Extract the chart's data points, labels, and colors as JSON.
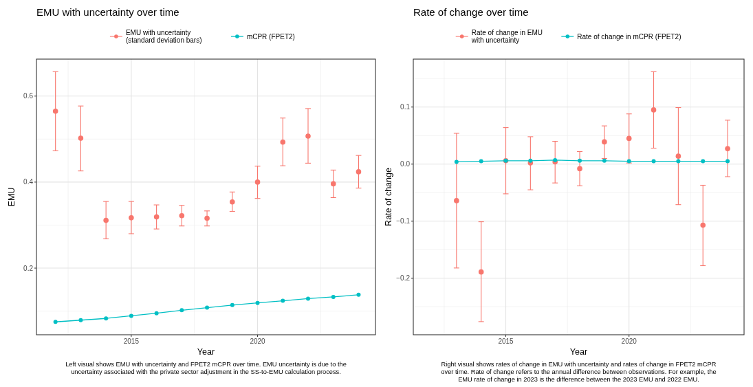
{
  "chart_data": [
    {
      "type": "scatter",
      "title": "EMU with uncertainty over time",
      "xlabel": "Year",
      "ylabel": "EMU",
      "xlim": [
        "2011-04",
        "2024-09"
      ],
      "xticks": [
        "2015",
        "2020"
      ],
      "ylim": [
        0.045,
        0.686
      ],
      "yticks": [
        0.2,
        0.4,
        0.6
      ],
      "grid": true,
      "legend": "top",
      "marker": "circle",
      "series": [
        {
          "name": "EMU with uncertainty\n(standard deviation bars)",
          "color": "#f8766d",
          "x": [
            "2012",
            "2013",
            "2014",
            "2015",
            "2016",
            "2017",
            "2018",
            "2019",
            "2020",
            "2021",
            "2022",
            "2023",
            "2024"
          ],
          "values": [
            0.565,
            0.502,
            0.311,
            0.317,
            0.319,
            0.322,
            0.316,
            0.354,
            0.4,
            0.493,
            0.507,
            0.396,
            0.424
          ],
          "errors": [
            [
              0.473,
              0.657
            ],
            [
              0.426,
              0.577
            ],
            [
              0.268,
              0.355
            ],
            [
              0.28,
              0.355
            ],
            [
              0.291,
              0.347
            ],
            [
              0.298,
              0.346
            ],
            [
              0.298,
              0.333
            ],
            [
              0.332,
              0.377
            ],
            [
              0.362,
              0.437
            ],
            [
              0.438,
              0.549
            ],
            [
              0.444,
              0.571
            ],
            [
              0.364,
              0.428
            ],
            [
              0.386,
              0.462
            ]
          ]
        },
        {
          "name": "mCPR (FPET2)",
          "type": "line",
          "color": "#00bfc4",
          "x": [
            "2012",
            "2013",
            "2014",
            "2015",
            "2016",
            "2017",
            "2018",
            "2019",
            "2020",
            "2021",
            "2022",
            "2023",
            "2024"
          ],
          "values": [
            0.075,
            0.079,
            0.083,
            0.089,
            0.095,
            0.102,
            0.108,
            0.114,
            0.119,
            0.124,
            0.129,
            0.133,
            0.138
          ]
        }
      ],
      "annotations": [
        "Left visual shows EMU with uncertainty and FPET2 mCPR over time. EMU uncertainty is due to the\nuncertainty associated with the private sector adjustment in the SS-to-EMU calculation process."
      ]
    },
    {
      "type": "scatter",
      "title": "Rate of change over time",
      "xlabel": "Year",
      "ylabel": "Rate of change",
      "xlim": [
        "2011-04",
        "2024-09"
      ],
      "xticks": [
        "2015",
        "2020"
      ],
      "ylim": [
        -0.299,
        0.184
      ],
      "yticks": [
        {
          "value": -0.2,
          "label": "−0.2"
        },
        {
          "value": -0.1,
          "label": "−0.1"
        },
        {
          "value": 0,
          "label": "0.0"
        },
        0.1
      ],
      "grid": true,
      "legend": "top",
      "marker": "circle",
      "series": [
        {
          "name": "Rate of change in EMU\nwith uncertainty",
          "color": "#f8766d",
          "x": [
            "2013",
            "2014",
            "2015",
            "2016",
            "2017",
            "2018",
            "2019",
            "2020",
            "2021",
            "2022",
            "2023",
            "2024"
          ],
          "values": [
            -0.064,
            -0.189,
            0.006,
            0.002,
            0.004,
            -0.008,
            0.039,
            0.045,
            0.095,
            0.014,
            -0.107,
            0.027
          ],
          "errors": [
            [
              -0.182,
              0.054
            ],
            [
              -0.276,
              -0.101
            ],
            [
              -0.052,
              0.064
            ],
            [
              -0.045,
              0.048
            ],
            [
              -0.033,
              0.04
            ],
            [
              -0.038,
              0.022
            ],
            [
              0.01,
              0.067
            ],
            [
              0.002,
              0.088
            ],
            [
              0.028,
              0.162
            ],
            [
              -0.071,
              0.099
            ],
            [
              -0.178,
              -0.037
            ],
            [
              -0.022,
              0.077
            ]
          ]
        },
        {
          "name": "Rate of change in mCPR (FPET2)",
          "type": "line",
          "color": "#00bfc4",
          "x": [
            "2013",
            "2014",
            "2015",
            "2016",
            "2017",
            "2018",
            "2019",
            "2020",
            "2021",
            "2022",
            "2023",
            "2024"
          ],
          "values": [
            0.004,
            0.005,
            0.006,
            0.006,
            0.007,
            0.006,
            0.006,
            0.005,
            0.005,
            0.005,
            0.005,
            0.005
          ]
        }
      ],
      "annotations": [
        "Right visual shows rates of change in EMU with uncertainty and rates of change in FPET2 mCPR\nover time. Rate of change refers to the annual difference between observations. For example, the\nEMU rate of change in 2023 is the difference between the 2023 EMU and 2022 EMU."
      ]
    }
  ]
}
